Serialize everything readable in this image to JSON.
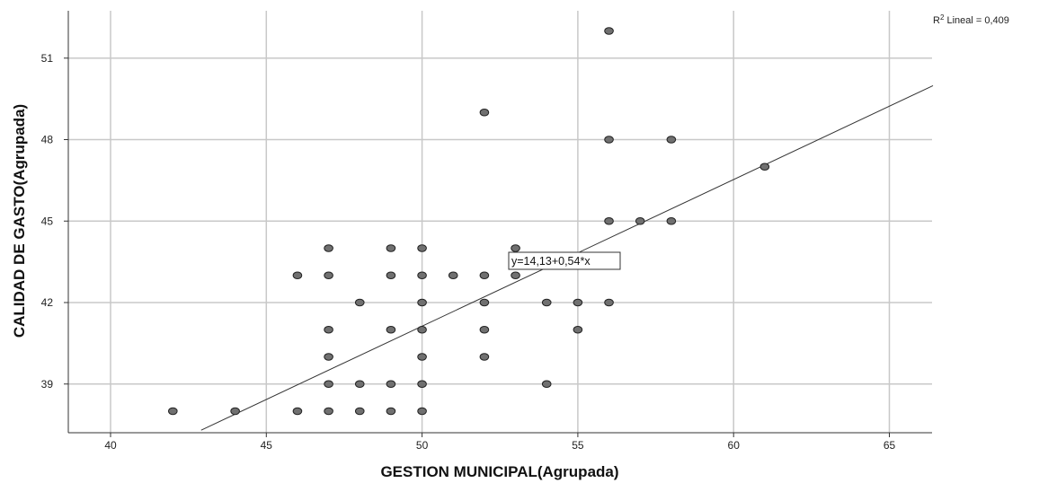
{
  "chart_data": {
    "type": "scatter",
    "xlabel": "GESTION MUNICIPAL(Agrupada)",
    "ylabel": "CALIDAD DE GASTO(Agrupada)",
    "x_ticks": [
      40,
      45,
      50,
      55,
      60,
      65
    ],
    "y_ticks": [
      39,
      42,
      45,
      48,
      51
    ],
    "xlim": [
      38.5,
      66.4
    ],
    "ylim": [
      37.3,
      52.8
    ],
    "grid": true,
    "r2_label": {
      "prefix": "R",
      "sup": "2",
      "text": " Lineal = 0,409"
    },
    "fit_line": {
      "intercept": 14.13,
      "slope": 0.54,
      "label": "y=14,13+0,54*x"
    },
    "points": [
      {
        "x": 42,
        "y": 38
      },
      {
        "x": 44,
        "y": 38
      },
      {
        "x": 46,
        "y": 38
      },
      {
        "x": 47,
        "y": 38
      },
      {
        "x": 48,
        "y": 38
      },
      {
        "x": 49,
        "y": 38
      },
      {
        "x": 50,
        "y": 38
      },
      {
        "x": 47,
        "y": 39
      },
      {
        "x": 48,
        "y": 39
      },
      {
        "x": 49,
        "y": 39
      },
      {
        "x": 50,
        "y": 39
      },
      {
        "x": 54,
        "y": 39
      },
      {
        "x": 47,
        "y": 40
      },
      {
        "x": 50,
        "y": 40
      },
      {
        "x": 52,
        "y": 40
      },
      {
        "x": 47,
        "y": 41
      },
      {
        "x": 49,
        "y": 41
      },
      {
        "x": 50,
        "y": 41
      },
      {
        "x": 52,
        "y": 41
      },
      {
        "x": 55,
        "y": 41
      },
      {
        "x": 48,
        "y": 42
      },
      {
        "x": 50,
        "y": 42
      },
      {
        "x": 52,
        "y": 42
      },
      {
        "x": 54,
        "y": 42
      },
      {
        "x": 55,
        "y": 42
      },
      {
        "x": 56,
        "y": 42
      },
      {
        "x": 46,
        "y": 43
      },
      {
        "x": 47,
        "y": 43
      },
      {
        "x": 49,
        "y": 43
      },
      {
        "x": 50,
        "y": 43
      },
      {
        "x": 51,
        "y": 43
      },
      {
        "x": 52,
        "y": 43
      },
      {
        "x": 53,
        "y": 43
      },
      {
        "x": 47,
        "y": 44
      },
      {
        "x": 49,
        "y": 44
      },
      {
        "x": 50,
        "y": 44
      },
      {
        "x": 53,
        "y": 44
      },
      {
        "x": 56,
        "y": 45
      },
      {
        "x": 57,
        "y": 45
      },
      {
        "x": 58,
        "y": 45
      },
      {
        "x": 61,
        "y": 47
      },
      {
        "x": 56,
        "y": 48
      },
      {
        "x": 58,
        "y": 48
      },
      {
        "x": 52,
        "y": 49
      },
      {
        "x": 56,
        "y": 52
      }
    ]
  }
}
